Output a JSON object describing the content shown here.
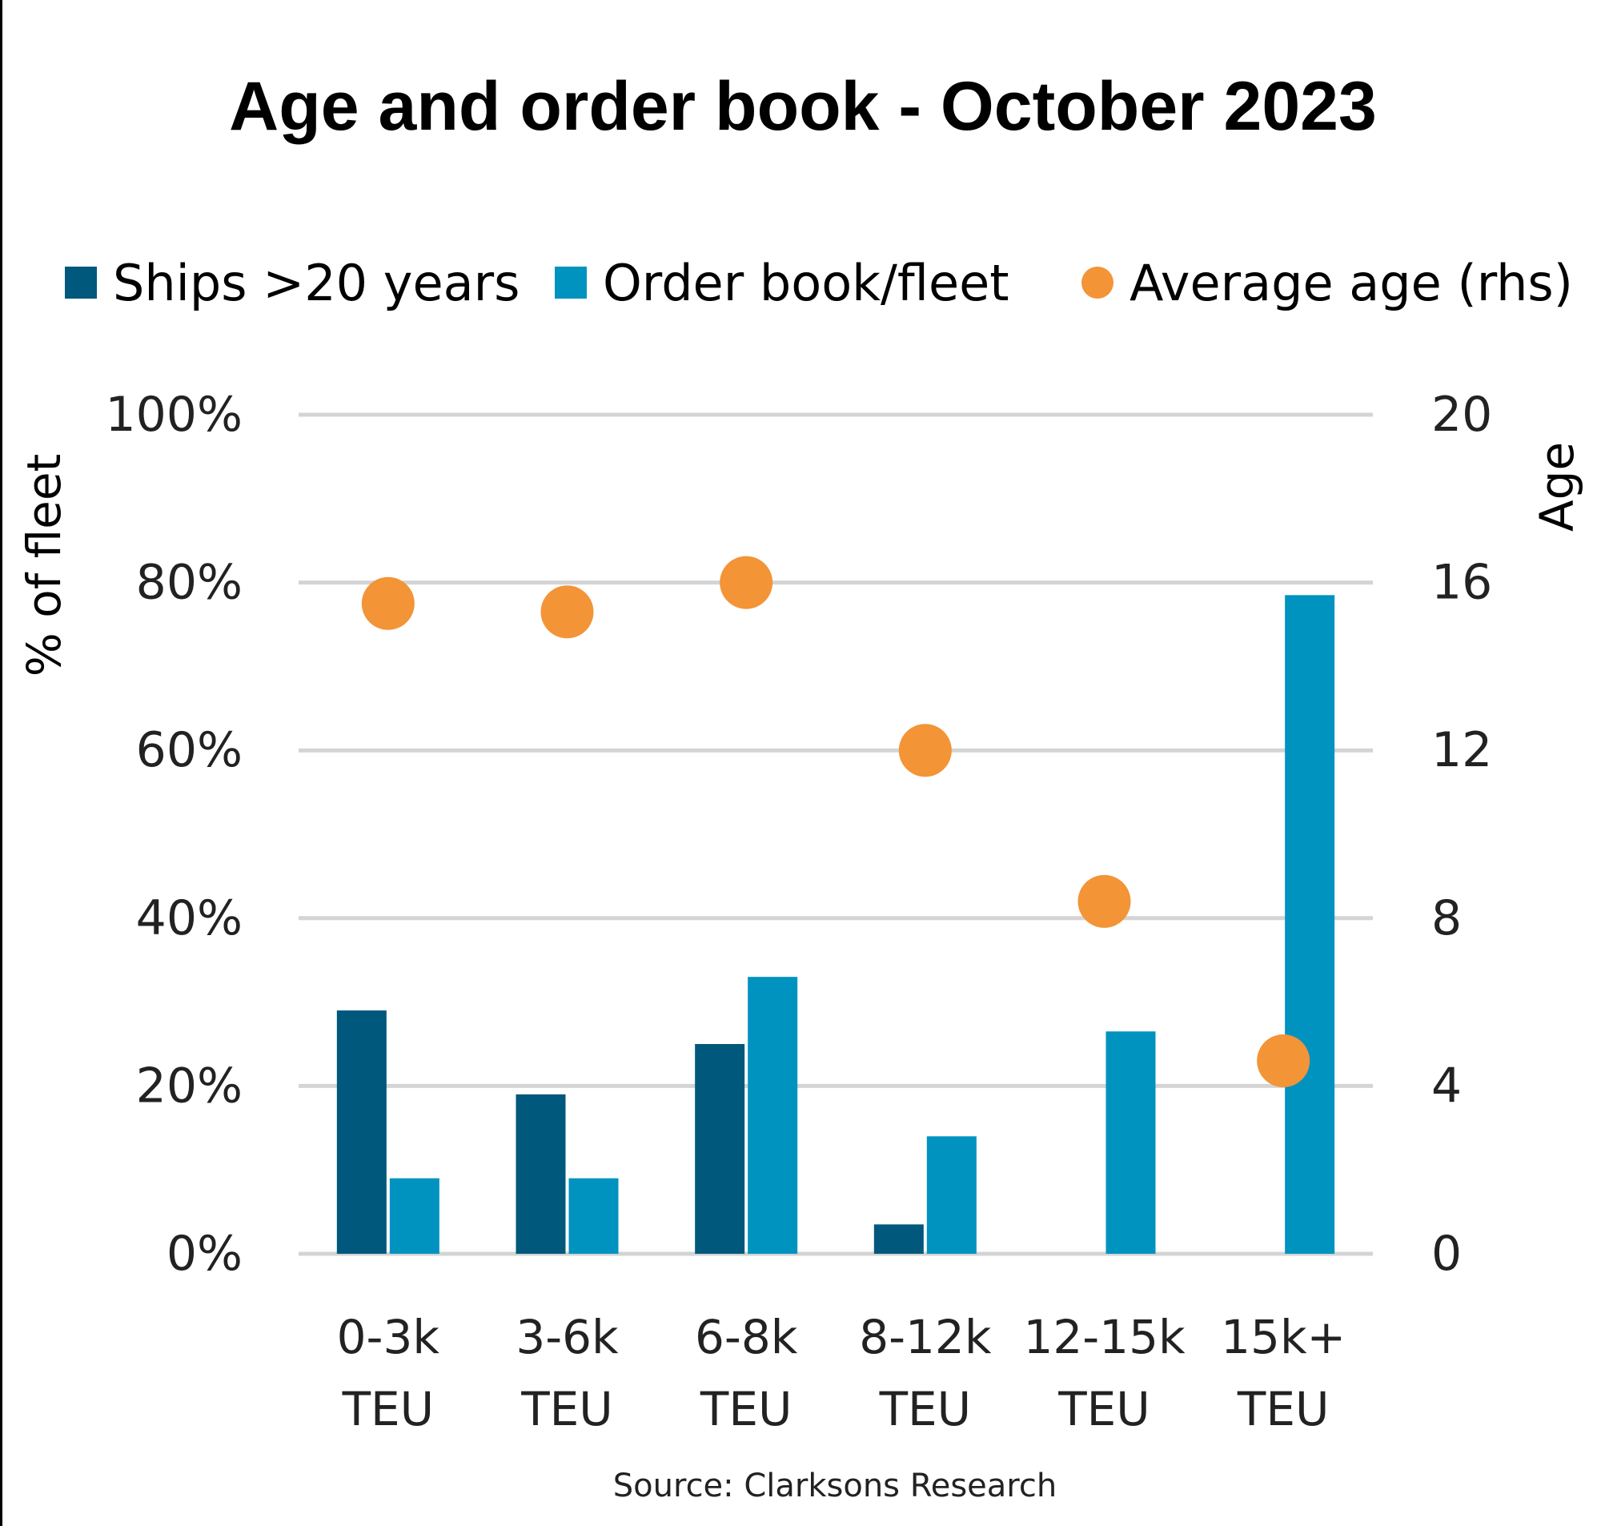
{
  "chart_data": {
    "type": "bar",
    "title": "Age and order book - October 2023",
    "categories": [
      [
        "0-3k",
        "TEU"
      ],
      [
        "3-6k",
        "TEU"
      ],
      [
        "6-8k",
        "TEU"
      ],
      [
        "8-12k",
        "TEU"
      ],
      [
        "12-15k",
        "TEU"
      ],
      [
        "15k+",
        "TEU"
      ]
    ],
    "series": [
      {
        "name": "Ships >20 years",
        "kind": "bar",
        "axis": "left",
        "color": "#00587c",
        "values": [
          29,
          19,
          25,
          3.5,
          0,
          0
        ]
      },
      {
        "name": "Order book/fleet",
        "kind": "bar",
        "axis": "left",
        "color": "#0093c0",
        "values": [
          9,
          9,
          33,
          14,
          26.5,
          78.5
        ]
      },
      {
        "name": "Average age (rhs)",
        "kind": "scatter",
        "axis": "right",
        "color": "#f39437",
        "values": [
          15.5,
          15.3,
          16.0,
          12.0,
          8.4,
          4.6
        ]
      }
    ],
    "ylabel": "% of fleet",
    "ylabel_right": "Age",
    "ylim": [
      0,
      100
    ],
    "ylim_right": [
      0,
      20
    ],
    "yticks": [
      "0%",
      "20%",
      "40%",
      "60%",
      "80%",
      "100%"
    ],
    "yticks_right": [
      "0",
      "4",
      "8",
      "12",
      "16",
      "20"
    ],
    "grid": true,
    "legend_position": "top",
    "source": "Source: Clarksons Research"
  }
}
